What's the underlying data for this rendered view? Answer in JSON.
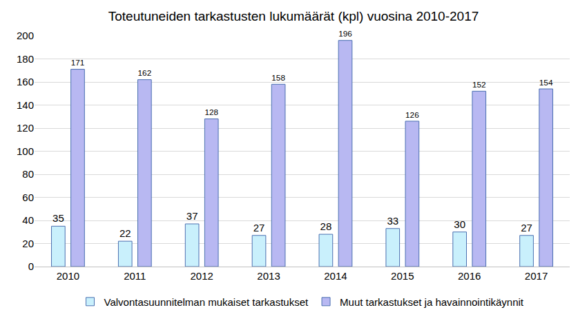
{
  "chart_data": {
    "type": "bar",
    "title": "Toteutuneiden tarkastusten lukumäärät (kpl) vuosina 2010-2017",
    "categories": [
      "2010",
      "2011",
      "2012",
      "2013",
      "2014",
      "2015",
      "2016",
      "2017"
    ],
    "series": [
      {
        "name": "Valvontasuunnitelman mukaiset tarkastukset",
        "color": "#c9f0fc",
        "values": [
          35,
          22,
          37,
          27,
          28,
          33,
          30,
          27
        ]
      },
      {
        "name": "Muut tarkastukset ja havainnointikäynnit",
        "color": "#b8b8f2",
        "values": [
          171,
          162,
          128,
          158,
          196,
          126,
          152,
          154
        ]
      }
    ],
    "ylim": [
      0,
      200
    ],
    "yticks": [
      0,
      20,
      40,
      60,
      80,
      100,
      120,
      140,
      160,
      180,
      200
    ],
    "grid": true,
    "legend": "bottom",
    "data_labels": true
  }
}
